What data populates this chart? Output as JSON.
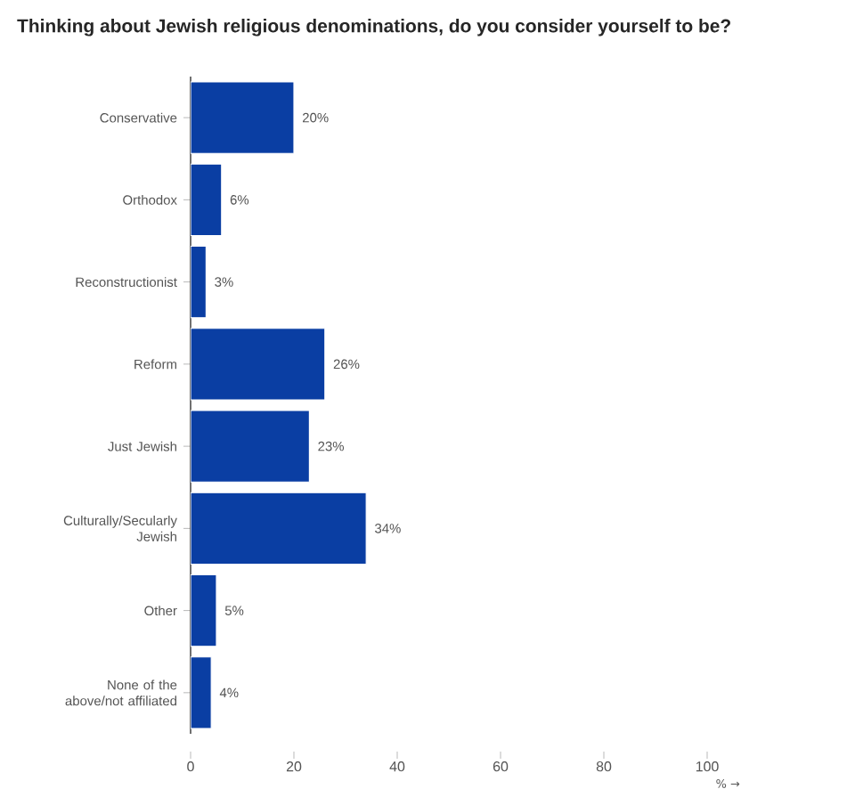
{
  "chart_data": {
    "type": "bar",
    "orientation": "horizontal",
    "title": "Thinking about Jewish religious denominations, do you consider yourself to be?",
    "xlabel": "% →",
    "categories": [
      "Conservative",
      "Orthodox",
      "Reconstructionist",
      "Reform",
      "Just Jewish",
      "Culturally/Secularly Jewish",
      "Other",
      "None of the above/not affiliated"
    ],
    "values": [
      20,
      6,
      3,
      26,
      23,
      34,
      5,
      4
    ],
    "value_labels": [
      "20%",
      "6%",
      "3%",
      "26%",
      "23%",
      "34%",
      "5%",
      "4%"
    ],
    "color": "#0a3ea3",
    "xlim": [
      0,
      100
    ],
    "xticks": [
      0,
      20,
      40,
      60,
      80,
      100
    ],
    "grid": false
  }
}
